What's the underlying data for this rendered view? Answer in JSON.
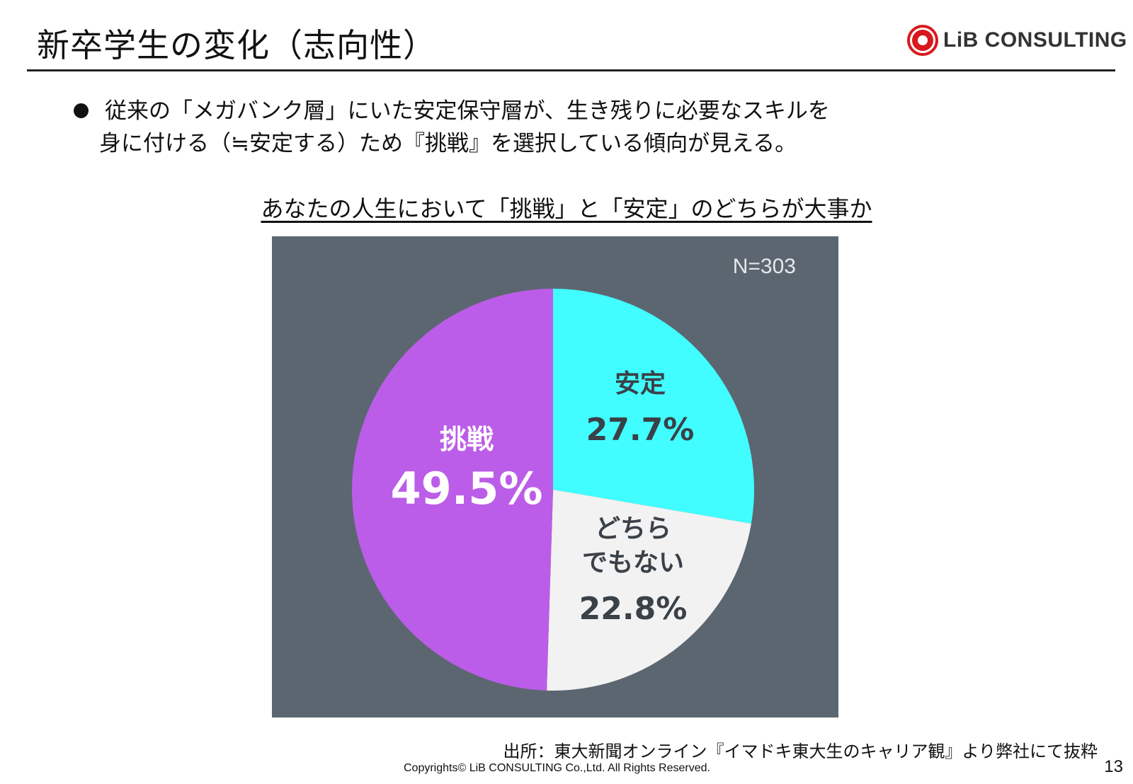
{
  "header": {
    "title": "新卒学生の変化（志向性）",
    "logo_text": "LiB CONSULTING"
  },
  "bullet": {
    "lines": [
      "従来の「メガバンク層」にいた安定保守層が、生き残りに必要なスキルを",
      "身に付ける（≒安定する）ため『挑戦』を選択している傾向が見える。"
    ]
  },
  "colors": {
    "panel_background": "#5c6670",
    "challenge": "#bb5de8",
    "stable": "#41fdff",
    "neither": "#f2f2f2",
    "logo_red": "#d7191f"
  },
  "chart_data": {
    "type": "pie",
    "title": "あなたの人生において「挑戦」と「安定」のどちらが大事か",
    "annotation": "N=303",
    "slices": [
      {
        "label_lines": [
          "安定"
        ],
        "value": 27.7,
        "value_label": "27.7%",
        "color": "#41fdff",
        "text_color": "#3a4148"
      },
      {
        "label_lines": [
          "どちら",
          "でもない"
        ],
        "value": 22.8,
        "value_label": "22.8%",
        "color": "#f2f2f2",
        "text_color": "#3a4148"
      },
      {
        "label_lines": [
          "挑戦"
        ],
        "value": 49.5,
        "value_label": "49.5%",
        "color": "#bb5de8",
        "text_color": "#ffffff"
      }
    ]
  },
  "footer": {
    "source": "出所：東大新聞オンライン『イマドキ東大生のキャリア観』より弊社にて抜粋",
    "copyright": "Copyrights© LiB CONSULTING Co.,Ltd.  All Rights Reserved.",
    "page_number": "13"
  }
}
